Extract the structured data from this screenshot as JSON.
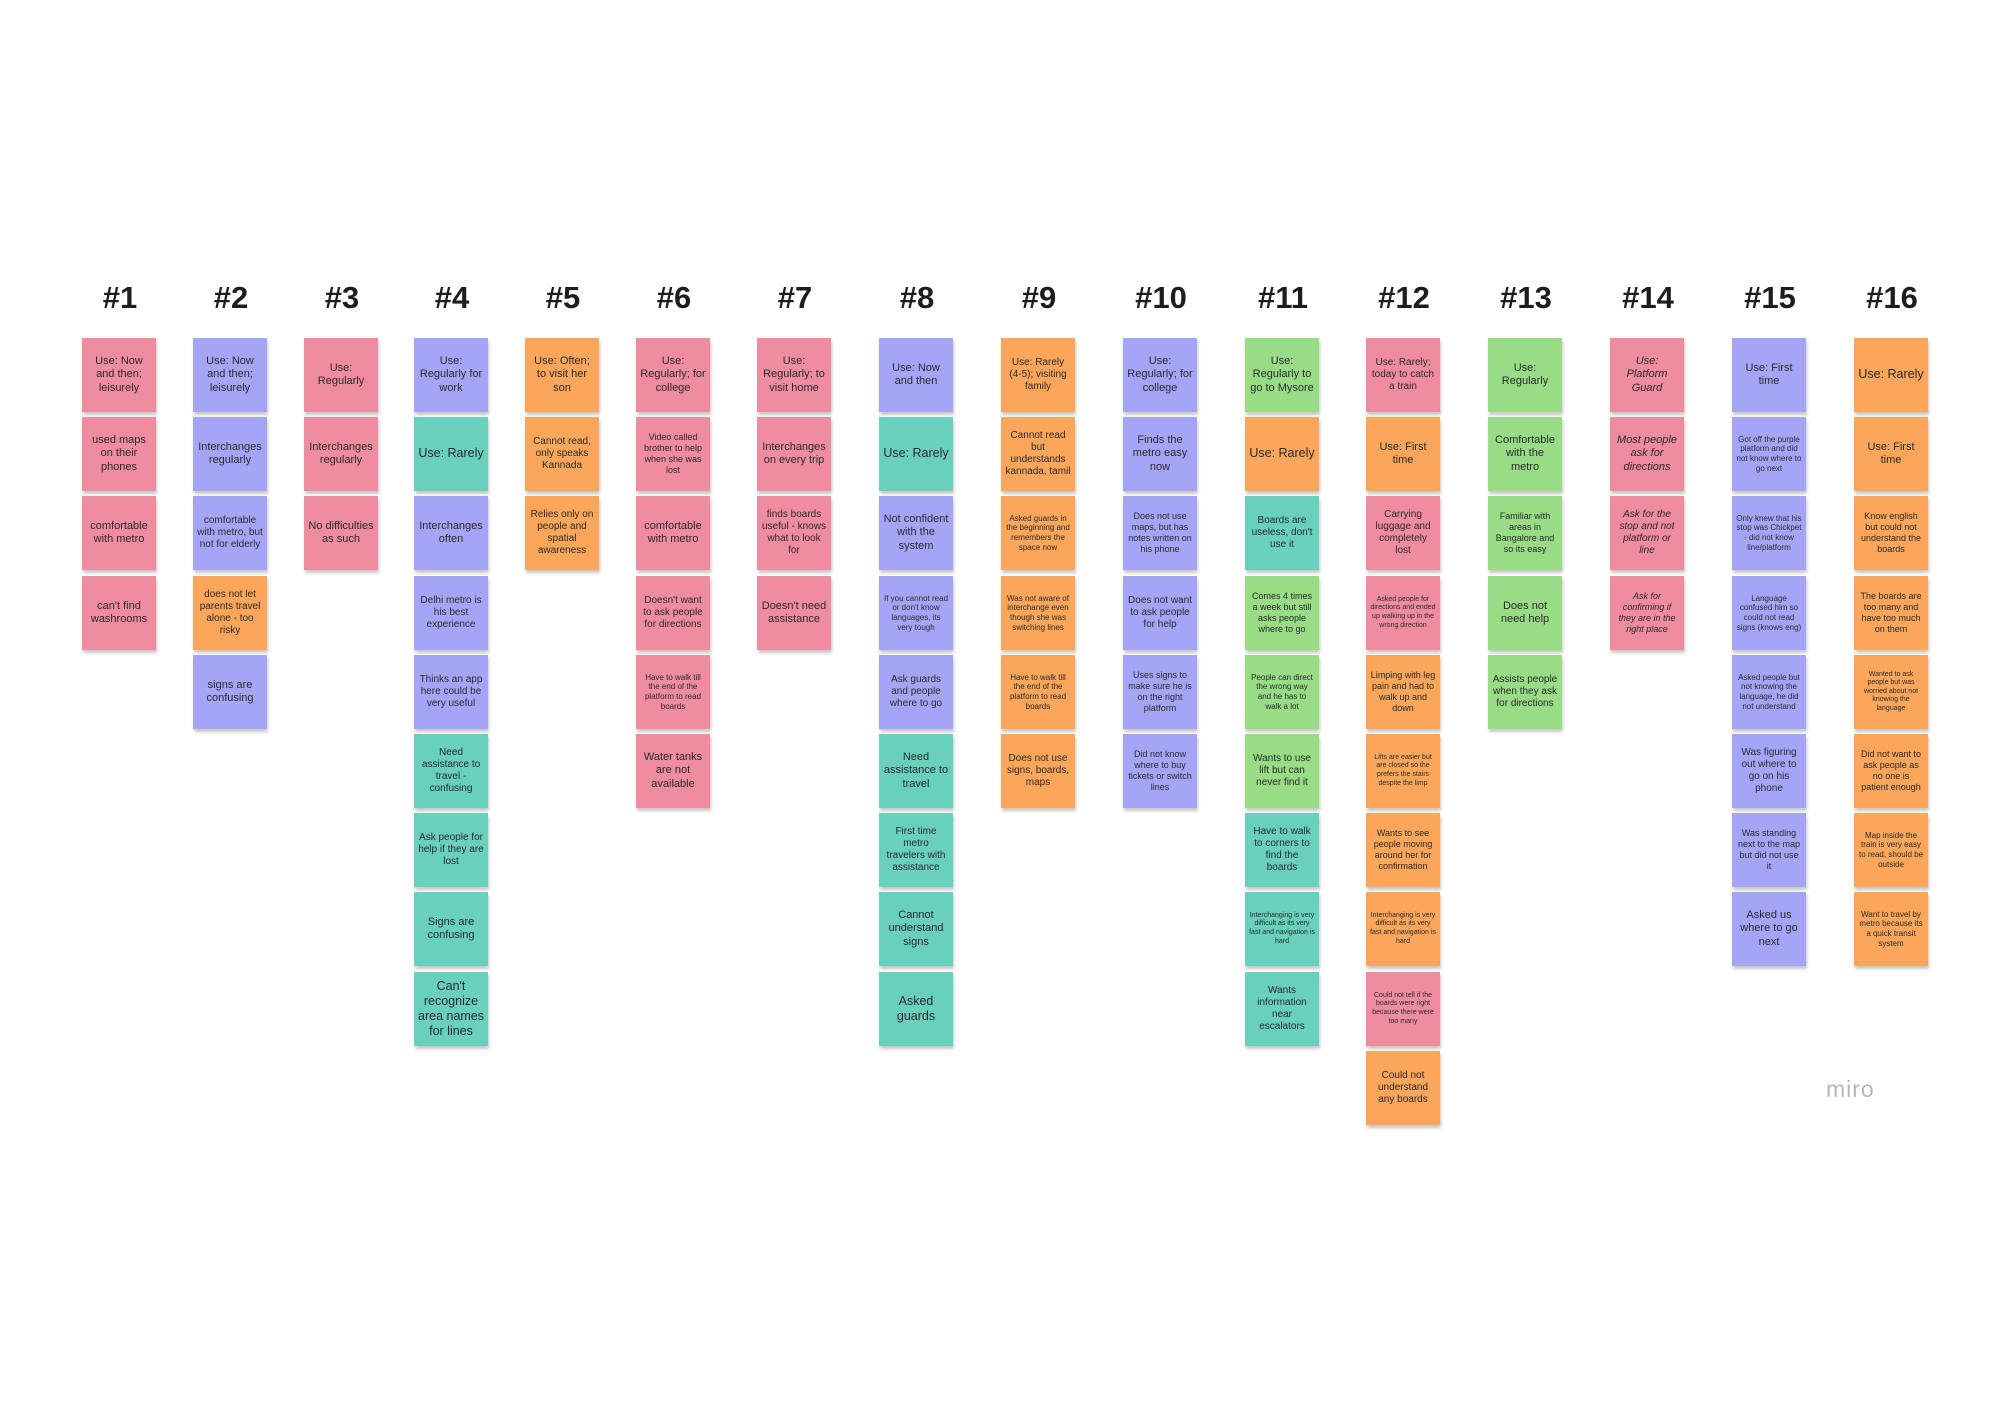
{
  "colors": {
    "pink": "#f08ca0",
    "blue": "#a5a5f8",
    "orange": "#fba65a",
    "teal": "#68d0bd",
    "green": "#98dc86",
    "heading": "#1d1d1d",
    "logo": "#b7b7b7"
  },
  "logo": "miro",
  "columns": [
    {
      "header": "#1",
      "notes": [
        {
          "text": "Use: Now and then; leisurely",
          "color": "pink"
        },
        {
          "text": "used maps on their phones",
          "color": "pink"
        },
        {
          "text": "comfortable with metro",
          "color": "pink"
        },
        {
          "text": "can't find washrooms",
          "color": "pink"
        }
      ]
    },
    {
      "header": "#2",
      "notes": [
        {
          "text": "Use: Now and then; leisurely",
          "color": "blue"
        },
        {
          "text": "Interchanges regularly",
          "color": "blue"
        },
        {
          "text": "comfortable with metro, but not for elderly",
          "color": "blue"
        },
        {
          "text": "does not let parents travel alone - too risky",
          "color": "orange"
        },
        {
          "text": "signs are confusing",
          "color": "blue"
        }
      ]
    },
    {
      "header": "#3",
      "notes": [
        {
          "text": "Use: Regularly",
          "color": "pink"
        },
        {
          "text": "Interchanges regularly",
          "color": "pink"
        },
        {
          "text": "No difficulties as such",
          "color": "pink"
        }
      ]
    },
    {
      "header": "#4",
      "notes": [
        {
          "text": "Use: Regularly for work",
          "color": "blue"
        },
        {
          "text": "Use: Rarely",
          "color": "teal"
        },
        {
          "text": "Interchanges often",
          "color": "blue"
        },
        {
          "text": "Delhi metro is his best experience",
          "color": "blue"
        },
        {
          "text": "Thinks an app here could be very useful",
          "color": "blue"
        },
        {
          "text": "Need assistance to travel - confusing",
          "color": "teal"
        },
        {
          "text": "Ask people for help if they are lost",
          "color": "teal"
        },
        {
          "text": "Signs are confusing",
          "color": "teal"
        },
        {
          "text": "Can't recognize area names for lines",
          "color": "teal"
        }
      ]
    },
    {
      "header": "#5",
      "notes": [
        {
          "text": "Use: Often; to visit her son",
          "color": "orange"
        },
        {
          "text": "Cannot read, only speaks Kannada",
          "color": "orange"
        },
        {
          "text": "Relies only on people and spatial awareness",
          "color": "orange"
        }
      ]
    },
    {
      "header": "#6",
      "notes": [
        {
          "text": "Use: Regularly; for college",
          "color": "pink"
        },
        {
          "text": "Video called brother to help when she was lost",
          "color": "pink"
        },
        {
          "text": "comfortable with metro",
          "color": "pink"
        },
        {
          "text": "Doesn't want to ask people for directions",
          "color": "pink"
        },
        {
          "text": "Have to walk till the end of the platform to read boards",
          "color": "pink"
        },
        {
          "text": "Water tanks are not available",
          "color": "pink"
        }
      ]
    },
    {
      "header": "#7",
      "notes": [
        {
          "text": "Use: Regularly; to visit home",
          "color": "pink"
        },
        {
          "text": "Interchanges on every trip",
          "color": "pink"
        },
        {
          "text": "finds boards useful - knows what to look for",
          "color": "pink"
        },
        {
          "text": "Doesn't need assistance",
          "color": "pink"
        }
      ]
    },
    {
      "header": "#8",
      "notes": [
        {
          "text": "Use: Now and then",
          "color": "blue"
        },
        {
          "text": "Use: Rarely",
          "color": "teal"
        },
        {
          "text": "Not confident with the system",
          "color": "blue"
        },
        {
          "text": "If you cannot read or don't know languages, its very tough",
          "color": "blue"
        },
        {
          "text": "Ask guards and people where to go",
          "color": "blue"
        },
        {
          "text": "Need assistance to travel",
          "color": "teal"
        },
        {
          "text": "First time metro travelers with assistance",
          "color": "teal"
        },
        {
          "text": "Cannot understand signs",
          "color": "teal"
        },
        {
          "text": "Asked guards",
          "color": "teal"
        }
      ]
    },
    {
      "header": "#9",
      "notes": [
        {
          "text": "Use: Rarely (4-5); visiting family",
          "color": "orange"
        },
        {
          "text": "Cannot read but understands kannada, tamil",
          "color": "orange"
        },
        {
          "text": "Asked guards in the beginning and remembers the space now",
          "color": "orange"
        },
        {
          "text": "Was not aware of interchange even though she was switching lines",
          "color": "orange"
        },
        {
          "text": "Have to walk till the end of the platform to read boards",
          "color": "orange"
        },
        {
          "text": "Does not use signs, boards, maps",
          "color": "orange"
        }
      ]
    },
    {
      "header": "#10",
      "notes": [
        {
          "text": "Use: Regularly; for college",
          "color": "blue"
        },
        {
          "text": "Finds the metro easy now",
          "color": "blue"
        },
        {
          "text": "Does not use maps, but has notes written on his phone",
          "color": "blue"
        },
        {
          "text": "Does not want to ask people for help",
          "color": "blue"
        },
        {
          "text": "Uses signs to make sure he is on the right platform",
          "color": "blue"
        },
        {
          "text": "Did not know where to buy tickets or switch lines",
          "color": "blue"
        }
      ]
    },
    {
      "header": "#11",
      "notes": [
        {
          "text": "Use: Regularly to go to Mysore",
          "color": "green"
        },
        {
          "text": "Use: Rarely",
          "color": "orange"
        },
        {
          "text": "Boards are useless, don't use it",
          "color": "teal"
        },
        {
          "text": "Comes 4 times a week but still asks people where to go",
          "color": "green"
        },
        {
          "text": "People can direct the wrong way and he has to walk a lot",
          "color": "green"
        },
        {
          "text": "Wants to use lift but can never find it",
          "color": "green"
        },
        {
          "text": "Have to walk to corners to find the boards",
          "color": "teal"
        },
        {
          "text": "Interchanging is very difficult as its very fast and navigation is hard",
          "color": "teal"
        },
        {
          "text": "Wants information near escalators",
          "color": "teal"
        }
      ]
    },
    {
      "header": "#12",
      "notes": [
        {
          "text": "Use: Rarely; today to catch a train",
          "color": "pink"
        },
        {
          "text": "Use: First time",
          "color": "orange"
        },
        {
          "text": "Carrying luggage and completely lost",
          "color": "pink"
        },
        {
          "text": "Asked people for directions and ended up walking up in the wrong direction",
          "color": "pink"
        },
        {
          "text": "Limping with leg pain and had to walk up and down",
          "color": "orange"
        },
        {
          "text": "Lifts are easier but are closed so the prefers the stairs despite the limp",
          "color": "orange"
        },
        {
          "text": "Wants to see people moving around her for confirmation",
          "color": "orange"
        },
        {
          "text": "Interchanging is very difficult as its very fast and navigation is hard",
          "color": "orange"
        },
        {
          "text": "Could not tell if the boards were right because there were too many",
          "color": "pink"
        },
        {
          "text": "Could not understand any boards",
          "color": "orange"
        }
      ]
    },
    {
      "header": "#13",
      "notes": [
        {
          "text": "Use: Regularly",
          "color": "green"
        },
        {
          "text": "Comfortable with the metro",
          "color": "green"
        },
        {
          "text": "Familiar with areas in Bangalore and so its easy",
          "color": "green"
        },
        {
          "text": "Does not need help",
          "color": "green"
        },
        {
          "text": "Assists people when they ask for directions",
          "color": "green"
        }
      ]
    },
    {
      "header": "#14",
      "notes": [
        {
          "text": "Use: Platform Guard",
          "color": "pink"
        },
        {
          "text": "Most people ask for directions",
          "color": "pink"
        },
        {
          "text": "Ask for the stop and not platform or line",
          "color": "pink"
        },
        {
          "text": "Ask for confirming if they are in the right place",
          "color": "pink"
        }
      ]
    },
    {
      "header": "#15",
      "notes": [
        {
          "text": "Use: First time",
          "color": "blue"
        },
        {
          "text": "Got off the purple platform and did not know where to go next",
          "color": "blue"
        },
        {
          "text": "Only knew that his stop was Chickpet - did not know line/platform",
          "color": "blue"
        },
        {
          "text": "Language confused him so could not read signs (knows eng)",
          "color": "blue"
        },
        {
          "text": "Asked people but not knowing the language, he did not understand",
          "color": "blue"
        },
        {
          "text": "Was figuring out where to go on his phone",
          "color": "blue"
        },
        {
          "text": "Was standing next to the map but did not use it",
          "color": "blue"
        },
        {
          "text": "Asked us where to go next",
          "color": "blue"
        }
      ]
    },
    {
      "header": "#16",
      "notes": [
        {
          "text": "Use: Rarely",
          "color": "orange"
        },
        {
          "text": "Use: First time",
          "color": "orange"
        },
        {
          "text": "Know english but could not understand the boards",
          "color": "orange"
        },
        {
          "text": "The boards are too many and have too much on them",
          "color": "orange"
        },
        {
          "text": "Wanted to ask people but was worried about not knowing the language",
          "color": "orange"
        },
        {
          "text": "Did not want to ask people as no one is patient enough",
          "color": "orange"
        },
        {
          "text": "Map inside the train is very easy to read, should be outside",
          "color": "orange"
        },
        {
          "text": "Want to travel by metro because its a quick transit system",
          "color": "orange"
        }
      ]
    }
  ]
}
